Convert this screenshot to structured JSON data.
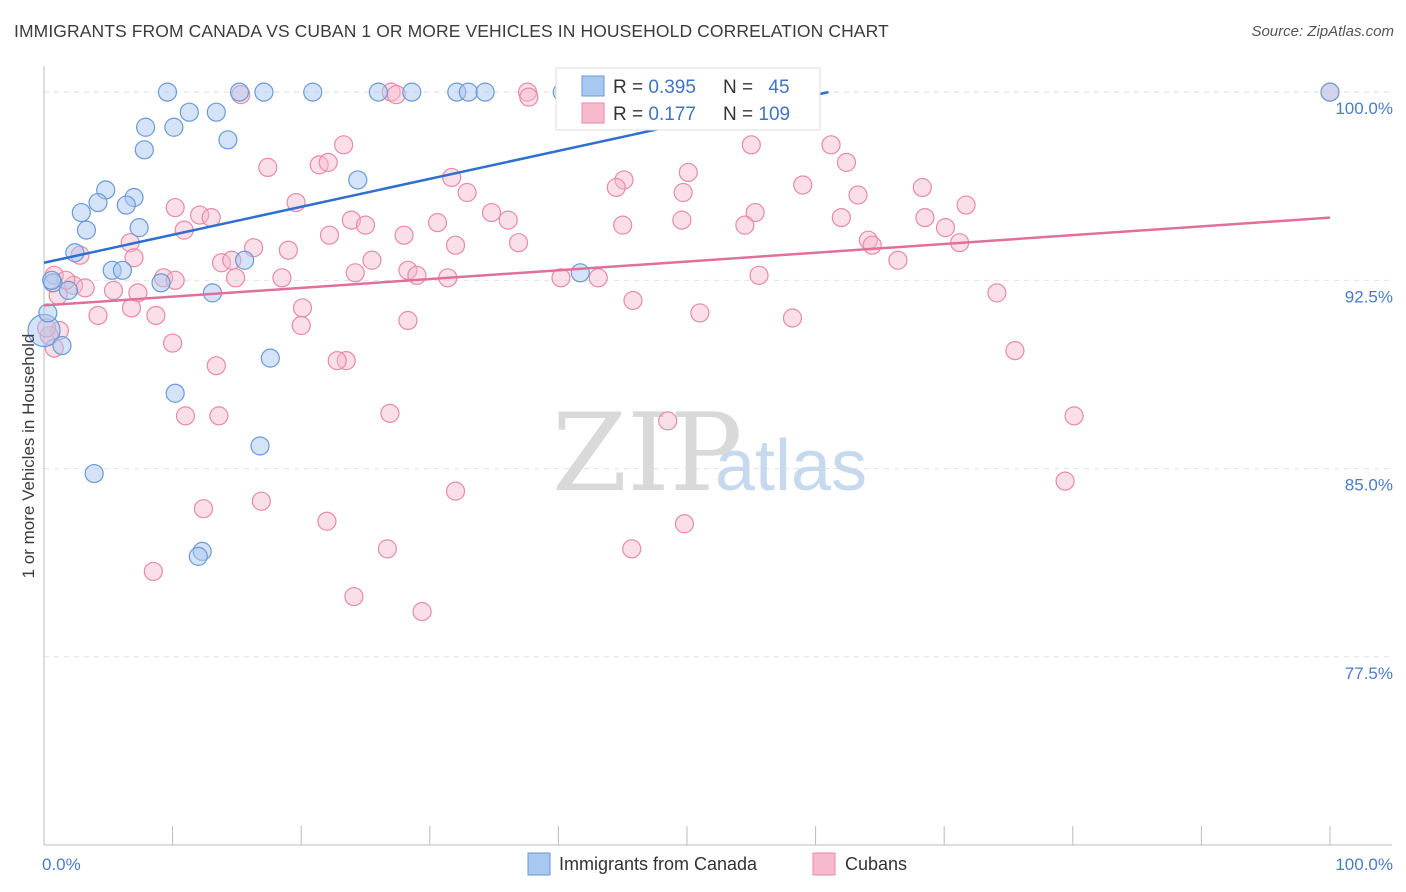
{
  "header": {
    "title": "IMMIGRANTS FROM CANADA VS CUBAN 1 OR MORE VEHICLES IN HOUSEHOLD CORRELATION CHART",
    "source": "Source: ZipAtlas.com"
  },
  "watermark": {
    "zip": "ZIP",
    "atlas": "atlas"
  },
  "colors": {
    "blue_fill": "#a9c8f0",
    "blue_stroke": "#6a9ad6",
    "blue_line": "#2f6fd0",
    "pink_fill": "#f7b9cc",
    "pink_stroke": "#e88aa8",
    "pink_line": "#e0709a",
    "tick_text": "#4a7cc9",
    "grid": "#e2e2e2"
  },
  "legend": {
    "rows": [
      {
        "r_label": "R = ",
        "r_value": "0.395",
        "n_label": "N = ",
        "n_value": "45"
      },
      {
        "r_label": "R = ",
        "r_value": "0.177",
        "n_label": "N = ",
        "n_value": "109"
      }
    ]
  },
  "chart_data": {
    "type": "scatter",
    "title": "IMMIGRANTS FROM CANADA VS CUBAN 1 OR MORE VEHICLES IN HOUSEHOLD CORRELATION CHART",
    "xlabel": "",
    "ylabel": "1 or more Vehicles in Household",
    "xlim": [
      0,
      100
    ],
    "ylim": [
      70.0,
      101.2
    ],
    "x_tick_labels": [
      "0.0%",
      "100.0%"
    ],
    "y_ticks": [
      77.5,
      85.0,
      92.5,
      100.0
    ],
    "y_tick_labels": [
      "77.5%",
      "85.0%",
      "92.5%",
      "100.0%"
    ],
    "grid": "horizontal-dashed",
    "legend_position": "top-center",
    "series": [
      {
        "name": "Immigrants from Canada",
        "color": "#a9c8f0",
        "trend": {
          "x": [
            0,
            61
          ],
          "y": [
            93.2,
            100.0
          ]
        },
        "points": [
          [
            9.6,
            100
          ],
          [
            15.2,
            100
          ],
          [
            17.1,
            100
          ],
          [
            20.9,
            100
          ],
          [
            26.0,
            100
          ],
          [
            28.6,
            100
          ],
          [
            32.1,
            100
          ],
          [
            33.0,
            100
          ],
          [
            34.3,
            100
          ],
          [
            40.3,
            100
          ],
          [
            100,
            100
          ],
          [
            11.3,
            99.2
          ],
          [
            13.4,
            99.2
          ],
          [
            10.1,
            98.6
          ],
          [
            7.9,
            98.6
          ],
          [
            14.3,
            98.1
          ],
          [
            7.8,
            97.7
          ],
          [
            24.4,
            96.5
          ],
          [
            4.8,
            96.1
          ],
          [
            7.0,
            95.8
          ],
          [
            4.2,
            95.6
          ],
          [
            6.4,
            95.5
          ],
          [
            2.9,
            95.2
          ],
          [
            7.4,
            94.6
          ],
          [
            3.3,
            94.5
          ],
          [
            2.4,
            93.6
          ],
          [
            15.6,
            93.3
          ],
          [
            5.3,
            92.9
          ],
          [
            6.1,
            92.9
          ],
          [
            9.1,
            92.4
          ],
          [
            0.7,
            92.4
          ],
          [
            1.9,
            92.1
          ],
          [
            13.1,
            92.0
          ],
          [
            41.7,
            92.8
          ],
          [
            0.0,
            90.5
          ],
          [
            1.4,
            89.9
          ],
          [
            17.6,
            89.4
          ],
          [
            10.2,
            88.0
          ],
          [
            16.8,
            85.9
          ],
          [
            3.9,
            84.8
          ],
          [
            12.3,
            81.7
          ],
          [
            12.0,
            81.5
          ],
          [
            54.0,
            100
          ],
          [
            0.3,
            91.2
          ],
          [
            0.6,
            92.5
          ]
        ]
      },
      {
        "name": "Cubans",
        "color": "#f7b9cc",
        "trend": {
          "x": [
            0,
            100
          ],
          "y": [
            91.5,
            95.0
          ]
        },
        "points": [
          [
            27.0,
            100
          ],
          [
            37.6,
            100
          ],
          [
            100,
            100
          ],
          [
            15.3,
            99.9
          ],
          [
            27.4,
            99.9
          ],
          [
            37.7,
            99.8
          ],
          [
            23.3,
            97.9
          ],
          [
            55.0,
            97.9
          ],
          [
            61.2,
            97.9
          ],
          [
            17.4,
            97.0
          ],
          [
            21.4,
            97.1
          ],
          [
            62.4,
            97.2
          ],
          [
            50.1,
            96.8
          ],
          [
            31.7,
            96.6
          ],
          [
            45.1,
            96.5
          ],
          [
            44.5,
            96.2
          ],
          [
            59.0,
            96.3
          ],
          [
            68.3,
            96.2
          ],
          [
            49.7,
            96.0
          ],
          [
            63.3,
            95.9
          ],
          [
            32.9,
            96.0
          ],
          [
            71.7,
            95.5
          ],
          [
            19.6,
            95.6
          ],
          [
            10.2,
            95.4
          ],
          [
            12.1,
            95.1
          ],
          [
            13.0,
            95.0
          ],
          [
            34.8,
            95.2
          ],
          [
            55.3,
            95.2
          ],
          [
            62.0,
            95.0
          ],
          [
            68.5,
            95.0
          ],
          [
            36.1,
            94.9
          ],
          [
            23.9,
            94.9
          ],
          [
            30.6,
            94.8
          ],
          [
            25.0,
            94.7
          ],
          [
            45.0,
            94.7
          ],
          [
            54.5,
            94.7
          ],
          [
            70.1,
            94.6
          ],
          [
            10.9,
            94.5
          ],
          [
            22.2,
            94.3
          ],
          [
            28.0,
            94.3
          ],
          [
            64.1,
            94.1
          ],
          [
            36.9,
            94.0
          ],
          [
            71.2,
            94.0
          ],
          [
            6.7,
            94.0
          ],
          [
            32.0,
            93.9
          ],
          [
            16.3,
            93.8
          ],
          [
            19.0,
            93.7
          ],
          [
            7.0,
            93.4
          ],
          [
            64.4,
            93.9
          ],
          [
            13.8,
            93.2
          ],
          [
            14.6,
            93.3
          ],
          [
            25.5,
            93.3
          ],
          [
            66.4,
            93.3
          ],
          [
            2.8,
            93.5
          ],
          [
            14.9,
            92.6
          ],
          [
            28.3,
            92.9
          ],
          [
            29.0,
            92.7
          ],
          [
            31.4,
            92.6
          ],
          [
            18.5,
            92.6
          ],
          [
            24.2,
            92.8
          ],
          [
            55.6,
            92.7
          ],
          [
            40.2,
            92.6
          ],
          [
            43.1,
            92.6
          ],
          [
            9.3,
            92.6
          ],
          [
            10.2,
            92.5
          ],
          [
            2.3,
            92.3
          ],
          [
            0.8,
            92.7
          ],
          [
            1.7,
            92.5
          ],
          [
            3.2,
            92.2
          ],
          [
            5.4,
            92.1
          ],
          [
            7.3,
            92.0
          ],
          [
            1.1,
            91.9
          ],
          [
            45.8,
            91.7
          ],
          [
            74.1,
            92.0
          ],
          [
            20.1,
            91.4
          ],
          [
            4.2,
            91.1
          ],
          [
            8.7,
            91.1
          ],
          [
            51.0,
            91.2
          ],
          [
            58.2,
            91.0
          ],
          [
            20.0,
            90.7
          ],
          [
            28.3,
            90.9
          ],
          [
            1.2,
            90.5
          ],
          [
            0.4,
            90.3
          ],
          [
            0.8,
            89.8
          ],
          [
            75.5,
            89.7
          ],
          [
            23.5,
            89.3
          ],
          [
            13.4,
            89.1
          ],
          [
            11.0,
            87.1
          ],
          [
            13.6,
            87.1
          ],
          [
            26.9,
            87.2
          ],
          [
            48.5,
            86.9
          ],
          [
            80.1,
            87.1
          ],
          [
            79.4,
            84.5
          ],
          [
            32.0,
            84.1
          ],
          [
            16.9,
            83.7
          ],
          [
            12.4,
            83.4
          ],
          [
            22.0,
            82.9
          ],
          [
            49.8,
            82.8
          ],
          [
            26.7,
            81.8
          ],
          [
            45.7,
            81.8
          ],
          [
            8.5,
            80.9
          ],
          [
            24.1,
            79.9
          ],
          [
            29.4,
            79.3
          ],
          [
            22.1,
            97.2
          ],
          [
            49.6,
            94.9
          ],
          [
            22.8,
            89.3
          ],
          [
            10.0,
            90.0
          ],
          [
            6.8,
            91.4
          ],
          [
            0.2,
            90.6
          ]
        ]
      }
    ]
  },
  "bottom_legend": {
    "items": [
      {
        "label": "Immigrants from Canada"
      },
      {
        "label": "Cubans"
      }
    ]
  }
}
